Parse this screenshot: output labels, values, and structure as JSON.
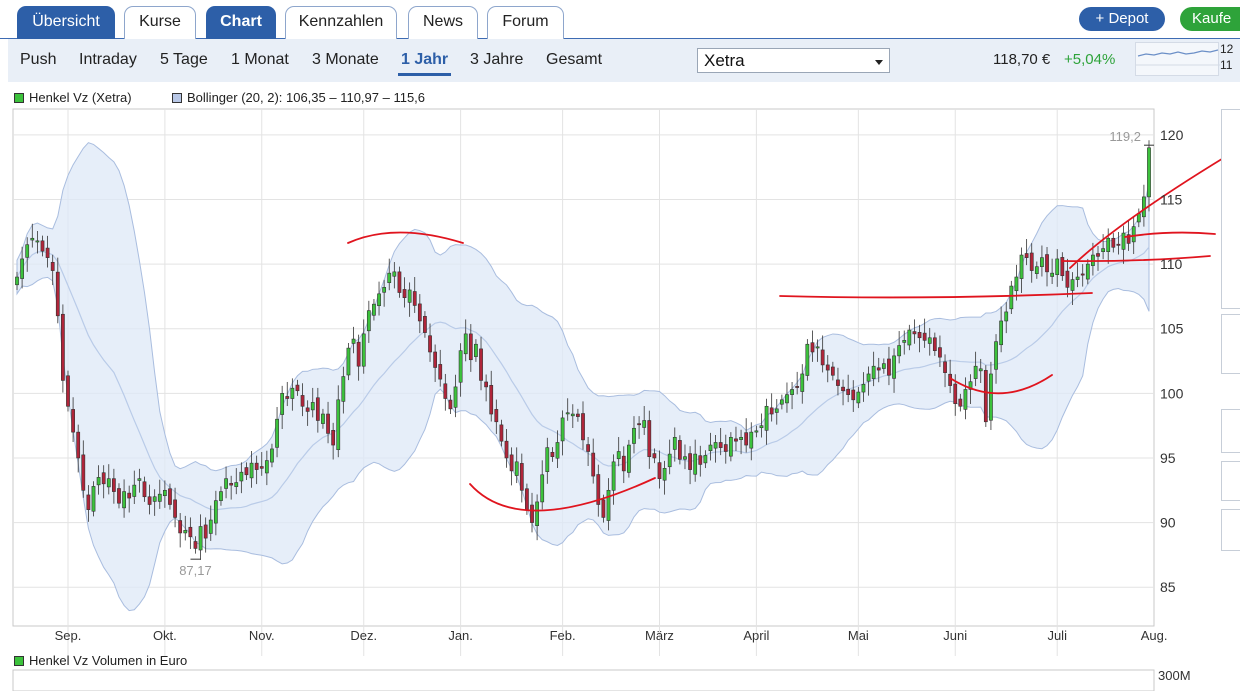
{
  "tabs": [
    {
      "label": "Übersicht",
      "active": true
    },
    {
      "label": "Kurse",
      "active": false
    },
    {
      "label": "Chart",
      "active": true
    },
    {
      "label": "Kennzahlen",
      "active": false
    },
    {
      "label": "News",
      "active": false
    },
    {
      "label": "Forum",
      "active": false
    }
  ],
  "actions": {
    "depot": "+ Depot",
    "buy": "Kaufe"
  },
  "periods": [
    "Push",
    "Intraday",
    "5 Tage",
    "1 Monat",
    "3 Monate",
    "1 Jahr",
    "3 Jahre",
    "Gesamt"
  ],
  "active_period": "1 Jahr",
  "exchange": "Xetra",
  "quote": {
    "price": "118,70 €",
    "change": "+5,04%"
  },
  "spark_labels": [
    "12",
    "11"
  ],
  "legend": {
    "price_series": "Henkel Vz (Xetra)",
    "bollinger": "Bollinger (20, 2): 106,35 – 110,97 – 115,6",
    "volume": "Henkel Vz Volumen in Euro"
  },
  "colors": {
    "accent": "#2d5fa8",
    "up": "#3cc23c",
    "down": "#b0253a",
    "band": "#dde8f7",
    "annotation": "#e0141e",
    "positive": "#2ea33a"
  },
  "chart_data": {
    "type": "candlestick",
    "series_name": "Henkel Vz (Xetra)",
    "y_ticks": [
      85,
      90,
      95,
      100,
      105,
      110,
      115,
      120
    ],
    "ylim": [
      82,
      122
    ],
    "x_ticks": [
      "Sep.",
      "Okt.",
      "Nov.",
      "Dez.",
      "Jan.",
      "Feb.",
      "März",
      "April",
      "Mai",
      "Juni",
      "Juli",
      "Aug."
    ],
    "grid": true,
    "annotations": {
      "high": "119,2",
      "low": "87,17"
    },
    "volume_axis_label": "300M",
    "close": [
      109.0,
      110.4,
      111.5,
      112.0,
      111.8,
      111.0,
      110.5,
      109.5,
      106.0,
      101.0,
      99.0,
      97.0,
      95.0,
      92.5,
      91.0,
      92.8,
      93.5,
      93.0,
      93.4,
      92.4,
      91.5,
      92.4,
      91.9,
      92.9,
      93.4,
      92.0,
      91.4,
      92.0,
      92.2,
      92.5,
      91.4,
      90.4,
      89.2,
      89.4,
      88.9,
      88.0,
      89.7,
      88.8,
      90.2,
      91.7,
      92.4,
      93.4,
      92.9,
      93.1,
      93.9,
      93.7,
      94.6,
      94.1,
      94.2,
      94.8,
      95.7,
      98.0,
      100.0,
      99.6,
      100.4,
      100.2,
      99.0,
      98.6,
      99.3,
      97.9,
      98.4,
      96.9,
      96.0,
      99.5,
      101.3,
      103.5,
      104.2,
      102.1,
      104.6,
      106.4,
      106.9,
      107.7,
      108.2,
      109.3,
      109.4,
      107.8,
      107.4,
      108.0,
      106.8,
      105.6,
      104.7,
      103.2,
      102.0,
      101.1,
      99.6,
      98.8,
      100.5,
      103.3,
      104.6,
      102.6,
      103.8,
      101.0,
      100.5,
      98.4,
      97.8,
      96.3,
      95.0,
      94.0,
      94.7,
      92.5,
      91.0,
      90.0,
      91.6,
      93.7,
      95.8,
      95.1,
      96.2,
      98.1,
      98.5,
      98.4,
      98.2,
      96.4,
      95.5,
      93.6,
      91.4,
      90.4,
      92.5,
      94.7,
      95.5,
      94.0,
      96.0,
      97.3,
      97.6,
      97.9,
      95.1,
      95.0,
      93.4,
      94.2,
      95.3,
      96.6,
      94.9,
      95.1,
      94.1,
      95.3,
      94.5,
      95.2,
      96.0,
      96.2,
      95.8,
      95.5,
      96.6,
      96.3,
      96.6,
      96.0,
      97.0,
      97.1,
      97.5,
      99.0,
      98.4,
      98.8,
      99.5,
      99.9,
      100.3,
      100.5,
      101.5,
      103.8,
      103.2,
      103.6,
      102.2,
      101.8,
      101.4,
      100.6,
      100.2,
      99.9,
      99.5,
      100.1,
      100.7,
      101.5,
      102.1,
      101.8,
      102.3,
      101.4,
      102.9,
      103.7,
      104.1,
      104.9,
      104.6,
      104.3,
      104.1,
      104.3,
      103.3,
      102.8,
      101.6,
      100.6,
      99.2,
      99.0,
      100.3,
      100.9,
      102.1,
      101.9,
      97.8,
      101.5,
      104.0,
      105.6,
      106.3,
      108.3,
      109.0,
      110.7,
      110.5,
      109.5,
      109.8,
      110.5,
      109.4,
      109.3,
      110.4,
      109.1,
      108.2,
      108.8,
      109.0,
      109.2,
      110.0,
      110.7,
      110.6,
      111.2,
      112.0,
      111.3,
      111.5,
      112.4,
      111.6,
      112.9,
      113.9,
      115.2,
      119.0
    ]
  }
}
